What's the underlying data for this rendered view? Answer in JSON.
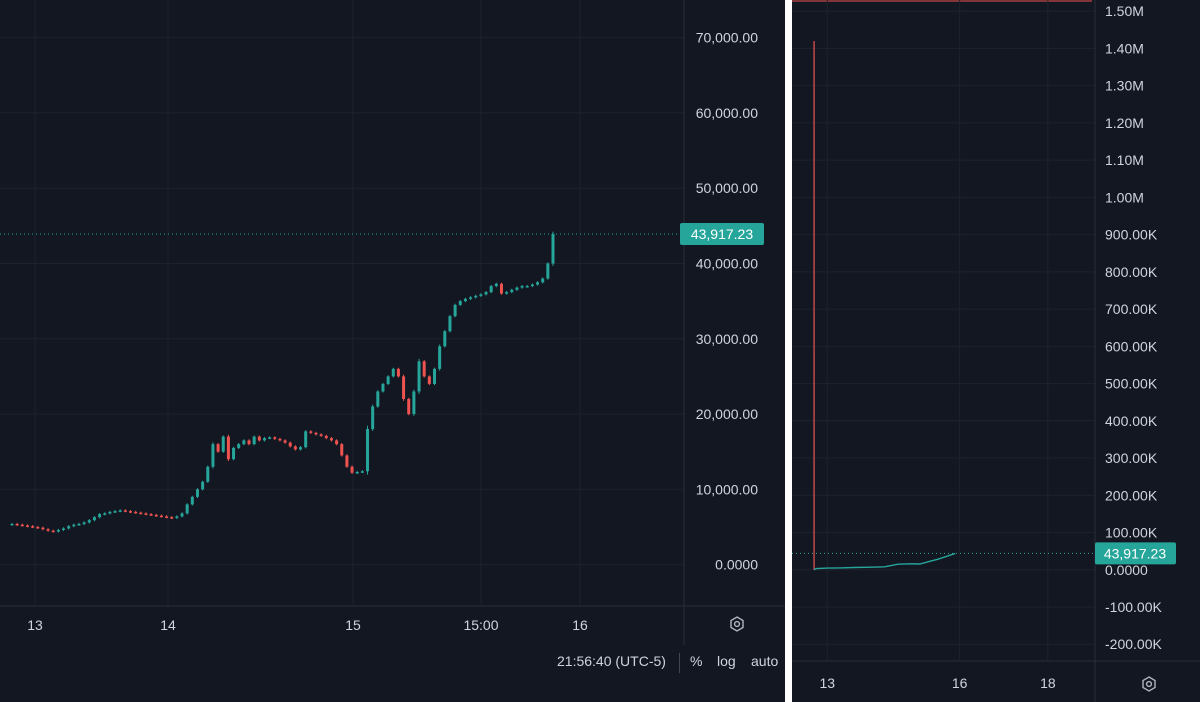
{
  "chart_data": [
    {
      "type": "candlestick",
      "title": "",
      "xlabel": "",
      "ylabel": "",
      "x_ticks": [
        "13",
        "14",
        "15",
        "15:00",
        "16"
      ],
      "y_ticks": [
        "0.0000",
        "10,000.00",
        "20,000.00",
        "30,000.00",
        "40,000.00",
        "50,000.00",
        "60,000.00",
        "70,000.00"
      ],
      "y_tick_values": [
        0,
        10000,
        20000,
        30000,
        40000,
        50000,
        60000,
        70000
      ],
      "ylim": [
        -5500,
        75000
      ],
      "last_price_label": "43,917.23",
      "last_price": 43917.23,
      "grid": true,
      "series": [
        {
          "values": [
            5400,
            5300,
            5200,
            5100,
            5000,
            4900,
            4700,
            4500,
            4400,
            4600,
            4800,
            5100,
            5300,
            5400,
            5600,
            5900,
            6300,
            6700,
            6800,
            7000,
            7100,
            7200,
            7100,
            7000,
            6900,
            6800,
            6700,
            6600,
            6500,
            6400,
            6300,
            6200,
            6400,
            6800,
            8000,
            9000,
            10000,
            11000,
            13000,
            16000,
            15000,
            17000,
            14000,
            15500,
            16000,
            16500,
            16000,
            17000,
            16500,
            16800,
            16900,
            16700,
            16500,
            16200,
            15700,
            15300,
            15600,
            17700,
            17500,
            17300,
            17100,
            16800,
            16500,
            16000,
            14500,
            13000,
            12200,
            12300,
            12400,
            18000,
            21000,
            23000,
            24000,
            25000,
            26000,
            25000,
            22000,
            20000,
            23000,
            27000,
            25000,
            24000,
            26000,
            29000,
            31000,
            33000,
            34500,
            35000,
            35300,
            35500,
            35700,
            35900,
            36200,
            37000,
            37300,
            36000,
            36200,
            36500,
            36800,
            37000,
            37000,
            37200,
            37500,
            38000,
            40000,
            43917
          ]
        }
      ]
    },
    {
      "type": "line",
      "title": "",
      "xlabel": "",
      "ylabel": "",
      "x_ticks": [
        "13",
        "16",
        "18"
      ],
      "x_tick_values": [
        13,
        16,
        18
      ],
      "xlim": [
        12.2,
        19
      ],
      "y_ticks": [
        "-200.00K",
        "-100.00K",
        "0.0000",
        "100.00K",
        "200.00K",
        "300.00K",
        "400.00K",
        "500.00K",
        "600.00K",
        "700.00K",
        "800.00K",
        "900.00K",
        "1.00M",
        "1.10M",
        "1.20M",
        "1.30M",
        "1.40M",
        "1.50M"
      ],
      "y_tick_values": [
        -200000,
        -100000,
        0,
        100000,
        200000,
        300000,
        400000,
        500000,
        600000,
        700000,
        800000,
        900000,
        1000000,
        1100000,
        1200000,
        1300000,
        1400000,
        1500000
      ],
      "ylim": [
        -245000,
        1530000
      ],
      "last_price_label": "43,917.23",
      "last_price": 43917.23,
      "grid": true,
      "spike": {
        "x": 12.7,
        "value": 1420000
      },
      "series": [
        {
          "x": [
            12.75,
            13.0,
            13.3,
            13.6,
            14.0,
            14.3,
            14.6,
            14.9,
            15.1,
            15.3,
            15.5,
            15.7,
            15.9
          ],
          "values": [
            3000,
            4500,
            5000,
            6000,
            6800,
            8000,
            15000,
            16000,
            15500,
            22000,
            28000,
            36000,
            43917
          ]
        }
      ]
    }
  ],
  "status": {
    "time": "21:56:40 (UTC-5)",
    "percent": "%",
    "log": "log",
    "auto": "auto"
  },
  "colors": {
    "up": "#26a69a",
    "down": "#ef5350",
    "background": "#131722",
    "badge": "#26a69a"
  },
  "icons": {
    "settings": "gear-icon"
  }
}
